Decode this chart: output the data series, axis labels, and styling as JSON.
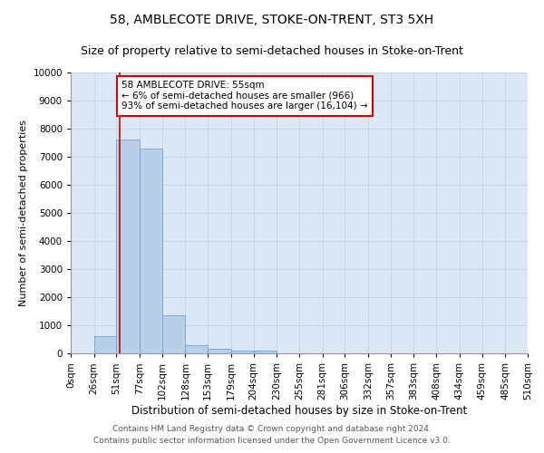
{
  "title1": "58, AMBLECOTE DRIVE, STOKE-ON-TRENT, ST3 5XH",
  "title2": "Size of property relative to semi-detached houses in Stoke-on-Trent",
  "xlabel": "Distribution of semi-detached houses by size in Stoke-on-Trent",
  "ylabel": "Number of semi-detached properties",
  "bin_labels": [
    "0sqm",
    "26sqm",
    "51sqm",
    "77sqm",
    "102sqm",
    "128sqm",
    "153sqm",
    "179sqm",
    "204sqm",
    "230sqm",
    "255sqm",
    "281sqm",
    "306sqm",
    "332sqm",
    "357sqm",
    "383sqm",
    "408sqm",
    "434sqm",
    "459sqm",
    "485sqm",
    "510sqm"
  ],
  "bin_edges": [
    0,
    26,
    51,
    77,
    102,
    128,
    153,
    179,
    204,
    230,
    255,
    281,
    306,
    332,
    357,
    383,
    408,
    434,
    459,
    485,
    510
  ],
  "bar_heights": [
    0,
    600,
    7600,
    7300,
    1350,
    300,
    150,
    100,
    100,
    0,
    0,
    0,
    0,
    0,
    0,
    0,
    0,
    0,
    0,
    0
  ],
  "bar_color": "#b8cfe8",
  "bar_edge_color": "#6ea6d4",
  "property_line_x": 55,
  "property_line_color": "#cc0000",
  "annotation_text": "58 AMBLECOTE DRIVE: 55sqm\n← 6% of semi-detached houses are smaller (966)\n93% of semi-detached houses are larger (16,104) →",
  "annotation_box_color": "#ffffff",
  "annotation_box_edge_color": "#cc0000",
  "ylim": [
    0,
    10000
  ],
  "yticks": [
    0,
    1000,
    2000,
    3000,
    4000,
    5000,
    6000,
    7000,
    8000,
    9000,
    10000
  ],
  "background_color": "#dce8f5",
  "footer1": "Contains HM Land Registry data © Crown copyright and database right 2024.",
  "footer2": "Contains public sector information licensed under the Open Government Licence v3.0.",
  "title1_fontsize": 10,
  "title2_fontsize": 9,
  "xlabel_fontsize": 8.5,
  "ylabel_fontsize": 8,
  "tick_fontsize": 7.5,
  "annotation_fontsize": 7.5,
  "footer_fontsize": 6.5
}
